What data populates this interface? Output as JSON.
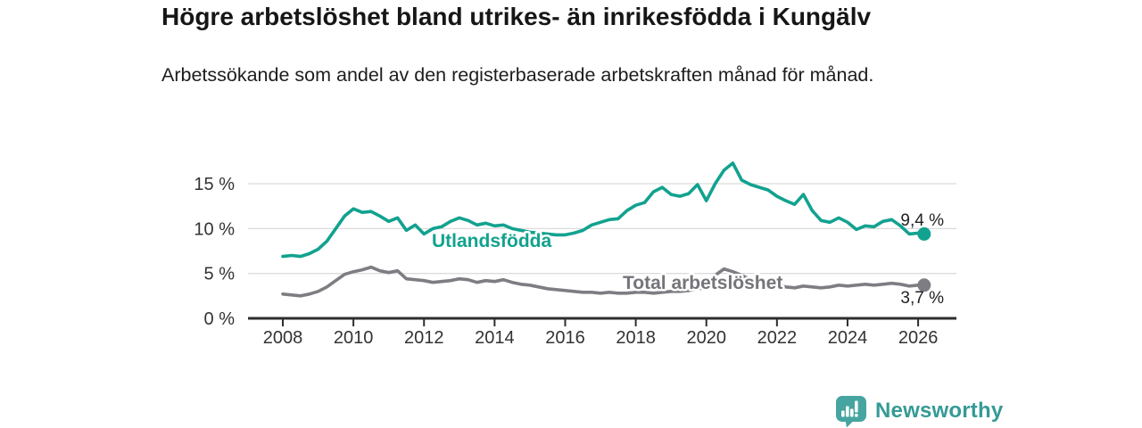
{
  "header": {
    "title": "Högre arbetslöshet bland utrikes- än inrikesfödda i Kungälv",
    "subtitle": "Arbetssökande som andel av den registerbaserade arbetskraften månad för månad."
  },
  "chart_data": {
    "type": "line",
    "title": "Högre arbetslöshet bland utrikes- än inrikesfödda i Kungälv",
    "subtitle": "Arbetssökande som andel av den registerbaserade arbetskraften månad för månad.",
    "xlabel": "",
    "ylabel": "",
    "x_unit": "decimal_year",
    "xlim": [
      2007.0,
      2027.1
    ],
    "ylim": [
      0,
      18
    ],
    "grid": "horizontal",
    "x_ticks": [
      2008,
      2010,
      2012,
      2014,
      2016,
      2018,
      2020,
      2022,
      2024,
      2026
    ],
    "x_tick_labels": [
      "2008",
      "2010",
      "2012",
      "2014",
      "2016",
      "2018",
      "2020",
      "2022",
      "2024",
      "2026"
    ],
    "y_ticks": [
      0,
      5,
      10,
      15
    ],
    "y_tick_labels": [
      "0 %",
      "5 %",
      "10 %",
      "15 %"
    ],
    "colors": {
      "grid": "#dcdcdc",
      "axis": "#2e2e2e",
      "tick_text": "#333333",
      "value_text": "#222222"
    },
    "series": [
      {
        "name": "Utlandsfödda",
        "color": "#12a28f",
        "label_color": "#12a28f",
        "end_label": "9,4 %",
        "end_value": 9.4,
        "points": [
          [
            2008.0,
            6.9
          ],
          [
            2008.25,
            7.0
          ],
          [
            2008.5,
            6.9
          ],
          [
            2008.75,
            7.2
          ],
          [
            2009.0,
            7.7
          ],
          [
            2009.25,
            8.6
          ],
          [
            2009.5,
            10.0
          ],
          [
            2009.75,
            11.4
          ],
          [
            2010.0,
            12.2
          ],
          [
            2010.25,
            11.8
          ],
          [
            2010.5,
            11.9
          ],
          [
            2010.75,
            11.4
          ],
          [
            2011.0,
            10.8
          ],
          [
            2011.25,
            11.2
          ],
          [
            2011.5,
            9.8
          ],
          [
            2011.75,
            10.4
          ],
          [
            2012.0,
            9.4
          ],
          [
            2012.25,
            10.0
          ],
          [
            2012.5,
            10.2
          ],
          [
            2012.75,
            10.8
          ],
          [
            2013.0,
            11.2
          ],
          [
            2013.25,
            10.9
          ],
          [
            2013.5,
            10.4
          ],
          [
            2013.75,
            10.6
          ],
          [
            2014.0,
            10.3
          ],
          [
            2014.25,
            10.4
          ],
          [
            2014.5,
            10.0
          ],
          [
            2014.75,
            9.8
          ],
          [
            2015.0,
            9.6
          ],
          [
            2015.25,
            9.5
          ],
          [
            2015.5,
            9.4
          ],
          [
            2015.75,
            9.3
          ],
          [
            2016.0,
            9.3
          ],
          [
            2016.25,
            9.5
          ],
          [
            2016.5,
            9.8
          ],
          [
            2016.75,
            10.4
          ],
          [
            2017.0,
            10.7
          ],
          [
            2017.25,
            11.0
          ],
          [
            2017.5,
            11.1
          ],
          [
            2017.75,
            12.0
          ],
          [
            2018.0,
            12.6
          ],
          [
            2018.25,
            12.9
          ],
          [
            2018.5,
            14.1
          ],
          [
            2018.75,
            14.6
          ],
          [
            2019.0,
            13.8
          ],
          [
            2019.25,
            13.6
          ],
          [
            2019.5,
            13.9
          ],
          [
            2019.75,
            14.9
          ],
          [
            2020.0,
            13.1
          ],
          [
            2020.25,
            15.0
          ],
          [
            2020.5,
            16.5
          ],
          [
            2020.75,
            17.3
          ],
          [
            2021.0,
            15.4
          ],
          [
            2021.25,
            14.9
          ],
          [
            2021.5,
            14.6
          ],
          [
            2021.75,
            14.3
          ],
          [
            2022.0,
            13.6
          ],
          [
            2022.25,
            13.1
          ],
          [
            2022.5,
            12.7
          ],
          [
            2022.75,
            13.8
          ],
          [
            2023.0,
            12.0
          ],
          [
            2023.25,
            10.9
          ],
          [
            2023.5,
            10.7
          ],
          [
            2023.75,
            11.2
          ],
          [
            2024.0,
            10.7
          ],
          [
            2024.25,
            9.9
          ],
          [
            2024.5,
            10.3
          ],
          [
            2024.75,
            10.2
          ],
          [
            2025.0,
            10.8
          ],
          [
            2025.25,
            11.0
          ],
          [
            2025.5,
            10.3
          ],
          [
            2025.75,
            9.4
          ],
          [
            2026.0,
            9.5
          ],
          [
            2026.17,
            9.4
          ]
        ]
      },
      {
        "name": "Total arbetslöshet",
        "color": "#7d7d83",
        "label_color": "#74747a",
        "end_label": "3,7 %",
        "end_value": 3.7,
        "points": [
          [
            2008.0,
            2.7
          ],
          [
            2008.25,
            2.6
          ],
          [
            2008.5,
            2.5
          ],
          [
            2008.75,
            2.7
          ],
          [
            2009.0,
            3.0
          ],
          [
            2009.25,
            3.5
          ],
          [
            2009.5,
            4.2
          ],
          [
            2009.75,
            4.9
          ],
          [
            2010.0,
            5.2
          ],
          [
            2010.25,
            5.4
          ],
          [
            2010.5,
            5.7
          ],
          [
            2010.75,
            5.3
          ],
          [
            2011.0,
            5.1
          ],
          [
            2011.25,
            5.3
          ],
          [
            2011.5,
            4.4
          ],
          [
            2011.75,
            4.3
          ],
          [
            2012.0,
            4.2
          ],
          [
            2012.25,
            4.0
          ],
          [
            2012.5,
            4.1
          ],
          [
            2012.75,
            4.2
          ],
          [
            2013.0,
            4.4
          ],
          [
            2013.25,
            4.3
          ],
          [
            2013.5,
            4.0
          ],
          [
            2013.75,
            4.2
          ],
          [
            2014.0,
            4.1
          ],
          [
            2014.25,
            4.3
          ],
          [
            2014.5,
            4.0
          ],
          [
            2014.75,
            3.8
          ],
          [
            2015.0,
            3.7
          ],
          [
            2015.25,
            3.5
          ],
          [
            2015.5,
            3.3
          ],
          [
            2015.75,
            3.2
          ],
          [
            2016.0,
            3.1
          ],
          [
            2016.25,
            3.0
          ],
          [
            2016.5,
            2.9
          ],
          [
            2016.75,
            2.9
          ],
          [
            2017.0,
            2.8
          ],
          [
            2017.25,
            2.9
          ],
          [
            2017.5,
            2.8
          ],
          [
            2017.75,
            2.8
          ],
          [
            2018.0,
            2.9
          ],
          [
            2018.25,
            2.9
          ],
          [
            2018.5,
            2.8
          ],
          [
            2018.75,
            2.9
          ],
          [
            2019.0,
            3.0
          ],
          [
            2019.25,
            3.0
          ],
          [
            2019.5,
            3.1
          ],
          [
            2019.75,
            3.3
          ],
          [
            2020.0,
            3.4
          ],
          [
            2020.25,
            4.8
          ],
          [
            2020.5,
            5.5
          ],
          [
            2020.75,
            5.2
          ],
          [
            2021.0,
            4.8
          ],
          [
            2021.25,
            4.3
          ],
          [
            2021.5,
            4.0
          ],
          [
            2021.75,
            3.8
          ],
          [
            2022.0,
            3.7
          ],
          [
            2022.25,
            3.5
          ],
          [
            2022.5,
            3.4
          ],
          [
            2022.75,
            3.6
          ],
          [
            2023.0,
            3.5
          ],
          [
            2023.25,
            3.4
          ],
          [
            2023.5,
            3.5
          ],
          [
            2023.75,
            3.7
          ],
          [
            2024.0,
            3.6
          ],
          [
            2024.25,
            3.7
          ],
          [
            2024.5,
            3.8
          ],
          [
            2024.75,
            3.7
          ],
          [
            2025.0,
            3.8
          ],
          [
            2025.25,
            3.9
          ],
          [
            2025.5,
            3.8
          ],
          [
            2025.75,
            3.6
          ],
          [
            2026.0,
            3.7
          ],
          [
            2026.17,
            3.7
          ]
        ]
      }
    ]
  },
  "footer": {
    "brand": "Newsworthy",
    "logo_icon": "newsworthy-pin-barchart-icon",
    "brand_color": "#359a96",
    "logo_color": "#46a5a1"
  }
}
